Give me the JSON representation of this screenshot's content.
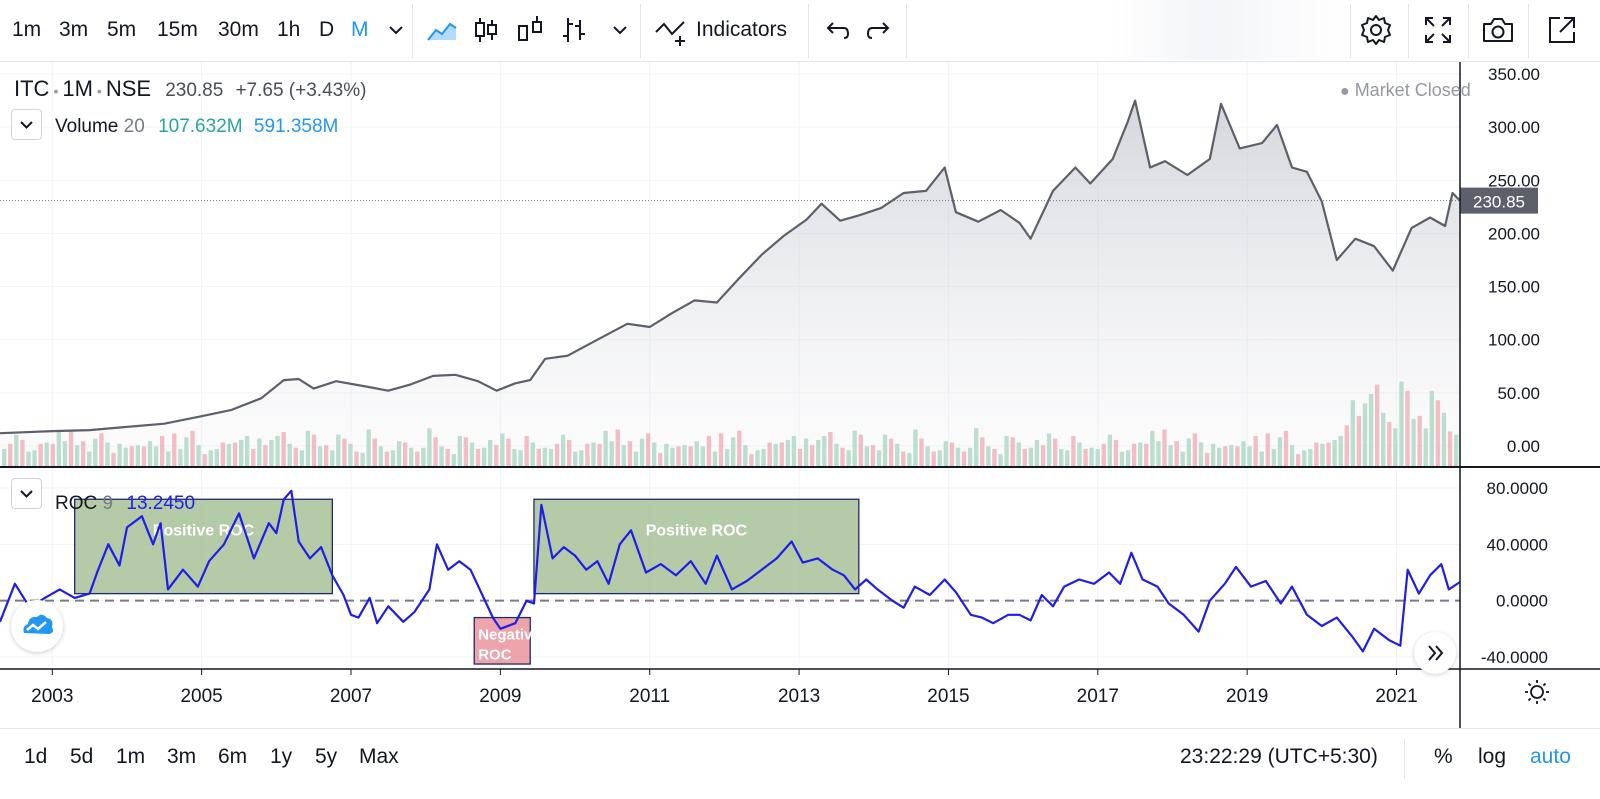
{
  "toolbar": {
    "timeframes": [
      "1m",
      "3m",
      "5m",
      "15m",
      "30m",
      "1h",
      "D",
      "M"
    ],
    "active_timeframe": "M",
    "indicators_label": "Indicators",
    "icons": [
      "chevron-down-icon",
      "area-chart-icon",
      "candles-icon",
      "hollow-candles-icon",
      "bars-icon",
      "chevron-down-icon",
      "indicators-icon",
      "undo-icon",
      "redo-icon",
      "settings-icon",
      "fullscreen-icon",
      "camera-icon",
      "popout-icon"
    ]
  },
  "legend": {
    "symbol": "ITC",
    "interval": "1M",
    "exchange": "NSE",
    "last": "230.85",
    "change": "+7.65 (+3.43%)",
    "market_status": "Market Closed",
    "volume_name": "Volume",
    "volume_length": "20",
    "volume_value": "107.632M",
    "volume_ma": "591.358M",
    "roc_name": "ROC",
    "roc_length": "9",
    "roc_value": "13.2450"
  },
  "bottom": {
    "ranges": [
      "1d",
      "5d",
      "1m",
      "3m",
      "6m",
      "1y",
      "5y",
      "Max"
    ],
    "clock": "23:22:29 (UTC+5:30)",
    "options": [
      "%",
      "log",
      "auto"
    ],
    "active_option": "auto"
  },
  "chart_data": [
    {
      "type": "area",
      "series_name": "ITC",
      "last_price_label": "230.85",
      "ylim": [
        -15,
        360
      ],
      "ytick_labels": [
        "350.00",
        "300.00",
        "250.00",
        "200.00",
        "150.00",
        "100.00",
        "50.00",
        "0.00"
      ],
      "xtick_labels": [
        "2003",
        "2005",
        "2007",
        "2009",
        "2011",
        "2013",
        "2015",
        "2017",
        "2019",
        "2021"
      ],
      "xlim": [
        2002.3,
        2021.85
      ],
      "points": [
        [
          2002.3,
          12
        ],
        [
          2003.0,
          14
        ],
        [
          2003.5,
          15
        ],
        [
          2004.0,
          18
        ],
        [
          2004.5,
          21
        ],
        [
          2005.0,
          28
        ],
        [
          2005.4,
          34
        ],
        [
          2005.8,
          45
        ],
        [
          2006.1,
          62
        ],
        [
          2006.3,
          63
        ],
        [
          2006.5,
          54
        ],
        [
          2006.8,
          61
        ],
        [
          2007.2,
          56
        ],
        [
          2007.5,
          52
        ],
        [
          2007.8,
          58
        ],
        [
          2008.1,
          66
        ],
        [
          2008.4,
          67
        ],
        [
          2008.7,
          61
        ],
        [
          2008.95,
          52
        ],
        [
          2009.2,
          59
        ],
        [
          2009.4,
          62
        ],
        [
          2009.6,
          82
        ],
        [
          2009.9,
          85
        ],
        [
          2010.3,
          100
        ],
        [
          2010.7,
          115
        ],
        [
          2011.0,
          112
        ],
        [
          2011.3,
          125
        ],
        [
          2011.6,
          137
        ],
        [
          2011.9,
          135
        ],
        [
          2012.2,
          158
        ],
        [
          2012.5,
          180
        ],
        [
          2012.8,
          198
        ],
        [
          2013.1,
          213
        ],
        [
          2013.3,
          228
        ],
        [
          2013.55,
          212
        ],
        [
          2013.8,
          217
        ],
        [
          2014.1,
          224
        ],
        [
          2014.4,
          238
        ],
        [
          2014.7,
          240
        ],
        [
          2014.95,
          262
        ],
        [
          2015.1,
          220
        ],
        [
          2015.4,
          211
        ],
        [
          2015.7,
          222
        ],
        [
          2015.95,
          210
        ],
        [
          2016.1,
          195
        ],
        [
          2016.4,
          240
        ],
        [
          2016.7,
          262
        ],
        [
          2016.9,
          247
        ],
        [
          2017.2,
          270
        ],
        [
          2017.4,
          305
        ],
        [
          2017.5,
          325
        ],
        [
          2017.7,
          262
        ],
        [
          2017.9,
          268
        ],
        [
          2018.2,
          255
        ],
        [
          2018.5,
          270
        ],
        [
          2018.65,
          322
        ],
        [
          2018.9,
          280
        ],
        [
          2019.2,
          285
        ],
        [
          2019.4,
          302
        ],
        [
          2019.6,
          262
        ],
        [
          2019.8,
          258
        ],
        [
          2020.0,
          230
        ],
        [
          2020.2,
          175
        ],
        [
          2020.45,
          195
        ],
        [
          2020.7,
          188
        ],
        [
          2020.95,
          165
        ],
        [
          2021.2,
          205
        ],
        [
          2021.45,
          215
        ],
        [
          2021.65,
          207
        ],
        [
          2021.75,
          238
        ],
        [
          2021.85,
          230.85
        ]
      ]
    },
    {
      "type": "bar",
      "series_name": "Volume",
      "values": [
        10,
        22,
        6,
        12,
        15,
        8,
        24,
        14,
        18,
        9,
        20,
        11,
        7,
        16,
        21,
        13,
        10,
        19,
        8,
        14,
        25,
        12,
        17,
        9,
        15,
        22,
        11,
        18,
        13,
        8,
        20,
        14,
        10,
        26,
        12,
        16,
        9,
        23,
        15,
        11,
        19,
        13,
        8,
        21,
        14,
        10,
        17,
        24,
        12,
        9,
        18,
        15,
        11,
        20,
        13,
        10,
        16,
        22,
        14,
        9
      ],
      "colors_up_down": [
        "#a5d6c0",
        "#f4a7b0"
      ]
    },
    {
      "type": "line",
      "series_name": "ROC",
      "value_label": "13.2450",
      "ylim": [
        -48,
        82
      ],
      "ytick_labels": [
        "80.0000",
        "40.0000",
        "0.0000",
        "-40.0000"
      ],
      "points": [
        [
          2002.3,
          -15
        ],
        [
          2002.5,
          12
        ],
        [
          2002.7,
          -5
        ],
        [
          2002.9,
          2
        ],
        [
          2003.1,
          8
        ],
        [
          2003.3,
          2
        ],
        [
          2003.5,
          5
        ],
        [
          2003.6,
          20
        ],
        [
          2003.75,
          40
        ],
        [
          2003.9,
          25
        ],
        [
          2004.0,
          52
        ],
        [
          2004.2,
          60
        ],
        [
          2004.35,
          40
        ],
        [
          2004.45,
          55
        ],
        [
          2004.55,
          8
        ],
        [
          2004.75,
          22
        ],
        [
          2004.95,
          10
        ],
        [
          2005.1,
          28
        ],
        [
          2005.3,
          40
        ],
        [
          2005.5,
          62
        ],
        [
          2005.7,
          30
        ],
        [
          2005.9,
          55
        ],
        [
          2006.0,
          48
        ],
        [
          2006.1,
          72
        ],
        [
          2006.2,
          78
        ],
        [
          2006.3,
          42
        ],
        [
          2006.45,
          30
        ],
        [
          2006.6,
          38
        ],
        [
          2006.75,
          18
        ],
        [
          2006.9,
          4
        ],
        [
          2007.0,
          -10
        ],
        [
          2007.1,
          -12
        ],
        [
          2007.25,
          2
        ],
        [
          2007.35,
          -16
        ],
        [
          2007.5,
          -4
        ],
        [
          2007.7,
          -15
        ],
        [
          2007.85,
          -8
        ],
        [
          2008.05,
          8
        ],
        [
          2008.15,
          40
        ],
        [
          2008.3,
          22
        ],
        [
          2008.45,
          28
        ],
        [
          2008.6,
          22
        ],
        [
          2008.75,
          5
        ],
        [
          2008.9,
          -12
        ],
        [
          2009.0,
          -20
        ],
        [
          2009.2,
          -16
        ],
        [
          2009.35,
          0
        ],
        [
          2009.45,
          -2
        ],
        [
          2009.55,
          68
        ],
        [
          2009.7,
          30
        ],
        [
          2009.85,
          38
        ],
        [
          2010.0,
          32
        ],
        [
          2010.15,
          22
        ],
        [
          2010.3,
          28
        ],
        [
          2010.45,
          12
        ],
        [
          2010.6,
          40
        ],
        [
          2010.75,
          50
        ],
        [
          2010.95,
          20
        ],
        [
          2011.15,
          26
        ],
        [
          2011.35,
          18
        ],
        [
          2011.55,
          28
        ],
        [
          2011.75,
          12
        ],
        [
          2011.9,
          32
        ],
        [
          2012.1,
          8
        ],
        [
          2012.3,
          14
        ],
        [
          2012.5,
          22
        ],
        [
          2012.7,
          30
        ],
        [
          2012.9,
          42
        ],
        [
          2013.05,
          27
        ],
        [
          2013.25,
          30
        ],
        [
          2013.45,
          22
        ],
        [
          2013.6,
          18
        ],
        [
          2013.75,
          8
        ],
        [
          2013.9,
          15
        ],
        [
          2014.05,
          8
        ],
        [
          2014.25,
          0
        ],
        [
          2014.4,
          -5
        ],
        [
          2014.55,
          10
        ],
        [
          2014.75,
          4
        ],
        [
          2014.95,
          15
        ],
        [
          2015.1,
          6
        ],
        [
          2015.3,
          -10
        ],
        [
          2015.45,
          -12
        ],
        [
          2015.6,
          -16
        ],
        [
          2015.8,
          -10
        ],
        [
          2015.95,
          -10
        ],
        [
          2016.1,
          -14
        ],
        [
          2016.25,
          4
        ],
        [
          2016.4,
          -4
        ],
        [
          2016.55,
          10
        ],
        [
          2016.75,
          15
        ],
        [
          2016.95,
          12
        ],
        [
          2017.15,
          20
        ],
        [
          2017.3,
          12
        ],
        [
          2017.45,
          34
        ],
        [
          2017.6,
          15
        ],
        [
          2017.8,
          10
        ],
        [
          2017.95,
          -2
        ],
        [
          2018.15,
          -10
        ],
        [
          2018.35,
          -22
        ],
        [
          2018.5,
          0
        ],
        [
          2018.7,
          12
        ],
        [
          2018.85,
          24
        ],
        [
          2019.05,
          10
        ],
        [
          2019.25,
          14
        ],
        [
          2019.45,
          -2
        ],
        [
          2019.6,
          10
        ],
        [
          2019.8,
          -10
        ],
        [
          2020.0,
          -18
        ],
        [
          2020.2,
          -12
        ],
        [
          2020.4,
          -25
        ],
        [
          2020.55,
          -36
        ],
        [
          2020.7,
          -20
        ],
        [
          2020.9,
          -28
        ],
        [
          2021.05,
          -32
        ],
        [
          2021.15,
          22
        ],
        [
          2021.3,
          5
        ],
        [
          2021.45,
          18
        ],
        [
          2021.6,
          26
        ],
        [
          2021.7,
          8
        ],
        [
          2021.85,
          13.245
        ]
      ],
      "annotations": [
        {
          "text": "Positive ROC",
          "x0": 2003.3,
          "x1": 2006.75,
          "y0": 5,
          "y1": 72,
          "color": "#9cb88a"
        },
        {
          "text": "Negative ROC",
          "x0": 2008.65,
          "x1": 2009.4,
          "y0": -45,
          "y1": -12,
          "color": "#e8868f"
        },
        {
          "text": "Positive ROC",
          "x0": 2009.45,
          "x1": 2013.8,
          "y0": 5,
          "y1": 72,
          "color": "#9cb88a"
        }
      ]
    }
  ]
}
